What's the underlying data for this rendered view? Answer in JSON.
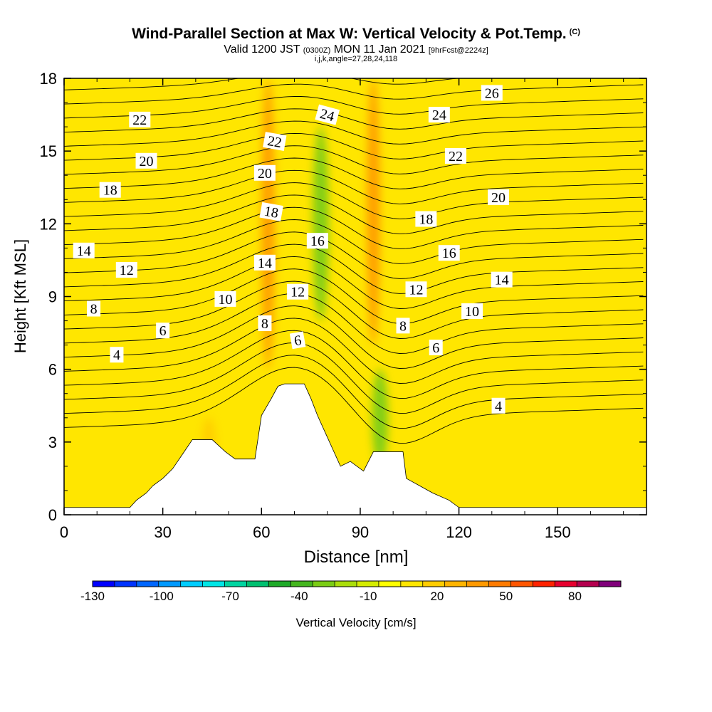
{
  "title": {
    "main": "Wind-Parallel Section at Max W: Vertical Velocity & Pot.Temp.",
    "copyright": "(C)",
    "valid_prefix": "Valid 1200 JST",
    "valid_utc": "(0300Z)",
    "valid_date": "MON 11 Jan 2021",
    "forecast": "[9hrFcst@2224z]",
    "indices": "i,j,k,angle=27,28,24,118"
  },
  "colorbar": {
    "label": "Vertical Velocity [cm/s]",
    "tick_labels": [
      "-130",
      "-100",
      "-70",
      "-40",
      "-10",
      "20",
      "50",
      "80"
    ],
    "tick_values": [
      -130,
      -100,
      -70,
      -40,
      -10,
      20,
      50,
      80
    ],
    "range": [
      -130,
      100
    ],
    "step": 10,
    "colors": [
      "#0000ff",
      "#0033ff",
      "#0066ff",
      "#0099ff",
      "#00ccff",
      "#00e5e5",
      "#00d4a0",
      "#00c070",
      "#1eaa28",
      "#44b61e",
      "#7acc14",
      "#aade0a",
      "#d4ec00",
      "#ffff00",
      "#ffe600",
      "#ffcc00",
      "#ffb400",
      "#ff9900",
      "#ff7a00",
      "#ff5500",
      "#ff2200",
      "#e6002e",
      "#b4004e",
      "#80007a"
    ]
  },
  "chart_data": {
    "type": "heatmap",
    "title": "Wind-Parallel Section at Max W: Vertical Velocity & Pot.Temp.",
    "xlabel": "Distance [nm]",
    "ylabel": "Height [Kft MSL]",
    "xlim": [
      0,
      177
    ],
    "ylim": [
      0,
      18
    ],
    "x_ticks": [
      0,
      30,
      60,
      90,
      120,
      150
    ],
    "y_ticks": [
      0,
      3,
      6,
      9,
      12,
      15,
      18
    ],
    "field": "Vertical Velocity [cm/s] (shaded), potential temperature contours (labeled)",
    "velocity_features": [
      {
        "x": 62,
        "y_range": [
          6,
          18
        ],
        "w": 40,
        "sign": "updraft"
      },
      {
        "x": 94,
        "y_range": [
          7,
          18
        ],
        "w": 45,
        "sign": "updraft"
      },
      {
        "x": 78,
        "y_range": [
          8,
          16
        ],
        "w": -25,
        "sign": "downdraft"
      },
      {
        "x": 96,
        "y_range": [
          2,
          6
        ],
        "w": -30,
        "sign": "downdraft"
      },
      {
        "x": 44,
        "y_range": [
          2,
          4
        ],
        "w": 20,
        "sign": "updraft"
      }
    ],
    "terrain_profile": {
      "x": [
        0,
        20,
        22,
        25,
        27,
        30,
        33,
        36,
        39,
        45,
        49,
        52,
        58,
        60,
        63,
        65,
        67,
        73,
        75,
        77,
        84,
        87,
        91,
        94,
        103,
        104,
        108,
        112,
        117,
        120,
        177
      ],
      "height": [
        0.3,
        0.3,
        0.6,
        0.9,
        1.2,
        1.5,
        1.9,
        2.5,
        3.1,
        3.1,
        2.6,
        2.3,
        2.3,
        4.1,
        4.8,
        5.3,
        5.4,
        5.4,
        4.8,
        4.1,
        2.0,
        2.2,
        1.8,
        2.6,
        2.6,
        1.5,
        1.2,
        0.9,
        0.6,
        0.3,
        0.3
      ]
    },
    "contour_labels": [
      {
        "text": "22",
        "x": 23,
        "y": 16.3,
        "angle": 0
      },
      {
        "text": "20",
        "x": 25,
        "y": 14.6,
        "angle": 0
      },
      {
        "text": "18",
        "x": 14,
        "y": 13.4,
        "angle": 0
      },
      {
        "text": "14",
        "x": 6,
        "y": 10.9,
        "angle": 0
      },
      {
        "text": "12",
        "x": 19,
        "y": 10.1,
        "angle": 0
      },
      {
        "text": "8",
        "x": 9,
        "y": 8.5,
        "angle": 0
      },
      {
        "text": "6",
        "x": 30,
        "y": 7.6,
        "angle": 0
      },
      {
        "text": "4",
        "x": 16,
        "y": 6.6,
        "angle": 0
      },
      {
        "text": "10",
        "x": 49,
        "y": 8.9,
        "angle": 0
      },
      {
        "text": "8",
        "x": 61,
        "y": 7.9,
        "angle": 0
      },
      {
        "text": "6",
        "x": 71,
        "y": 7.2,
        "angle": -10
      },
      {
        "text": "12",
        "x": 71,
        "y": 9.2,
        "angle": 0
      },
      {
        "text": "14",
        "x": 61,
        "y": 10.4,
        "angle": 0
      },
      {
        "text": "16",
        "x": 77,
        "y": 11.3,
        "angle": 0
      },
      {
        "text": "18",
        "x": 63,
        "y": 12.5,
        "angle": 10
      },
      {
        "text": "20",
        "x": 61,
        "y": 14.1,
        "angle": 0
      },
      {
        "text": "22",
        "x": 64,
        "y": 15.4,
        "angle": 10
      },
      {
        "text": "24",
        "x": 80,
        "y": 16.5,
        "angle": 15
      },
      {
        "text": "26",
        "x": 130,
        "y": 17.4,
        "angle": 0
      },
      {
        "text": "24",
        "x": 114,
        "y": 16.5,
        "angle": 0
      },
      {
        "text": "22",
        "x": 119,
        "y": 14.8,
        "angle": 0
      },
      {
        "text": "20",
        "x": 132,
        "y": 13.1,
        "angle": 0
      },
      {
        "text": "18",
        "x": 110,
        "y": 12.2,
        "angle": 0
      },
      {
        "text": "16",
        "x": 117,
        "y": 10.8,
        "angle": 0
      },
      {
        "text": "14",
        "x": 133,
        "y": 9.7,
        "angle": 0
      },
      {
        "text": "12",
        "x": 107,
        "y": 9.3,
        "angle": 0
      },
      {
        "text": "10",
        "x": 124,
        "y": 8.4,
        "angle": 0
      },
      {
        "text": "8",
        "x": 103,
        "y": 7.8,
        "angle": 0
      },
      {
        "text": "6",
        "x": 113,
        "y": 6.9,
        "angle": 0
      },
      {
        "text": "4",
        "x": 132,
        "y": 4.5,
        "angle": 0
      }
    ]
  }
}
